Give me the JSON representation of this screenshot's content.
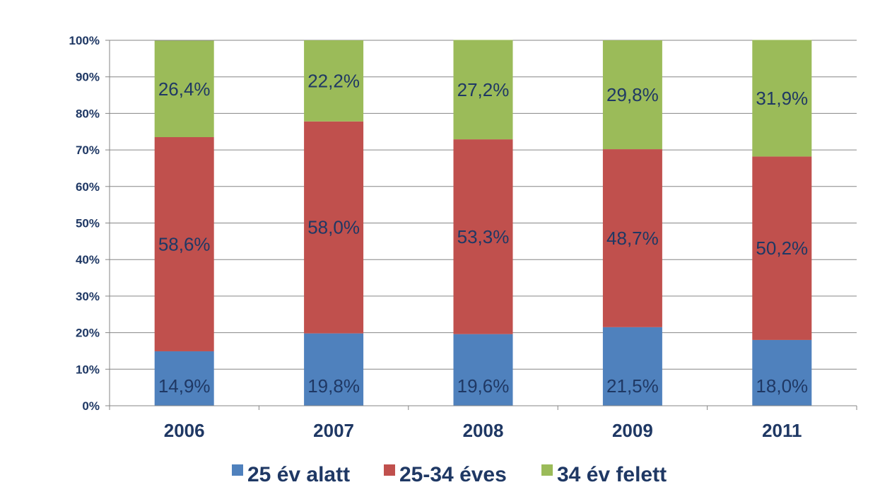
{
  "chart_data": {
    "type": "bar",
    "stacked": true,
    "percent": true,
    "categories": [
      "2006",
      "2007",
      "2008",
      "2009",
      "2011"
    ],
    "series": [
      {
        "name": "25 év alatt",
        "color": "#4F81BD",
        "values": [
          14.9,
          19.8,
          19.6,
          21.5,
          18.0
        ],
        "labels": [
          "14,9%",
          "19,8%",
          "19,6%",
          "21,5%",
          "18,0%"
        ]
      },
      {
        "name": "25-34 éves",
        "color": "#C0504D",
        "values": [
          58.6,
          58.0,
          53.3,
          48.7,
          50.2
        ],
        "labels": [
          "58,6%",
          "58,0%",
          "53,3%",
          "48,7%",
          "50,2%"
        ]
      },
      {
        "name": "34 év felett",
        "color": "#9BBB59",
        "values": [
          26.4,
          22.2,
          27.2,
          29.8,
          31.9
        ],
        "labels": [
          "26,4%",
          "22,2%",
          "27,2%",
          "29,8%",
          "31,9%"
        ]
      }
    ],
    "ylim": [
      0,
      100
    ],
    "yticks": [
      "0%",
      "10%",
      "20%",
      "30%",
      "40%",
      "50%",
      "60%",
      "70%",
      "80%",
      "90%",
      "100%"
    ],
    "grid": true,
    "legend": "bottom",
    "text_color": "#1F3864"
  }
}
